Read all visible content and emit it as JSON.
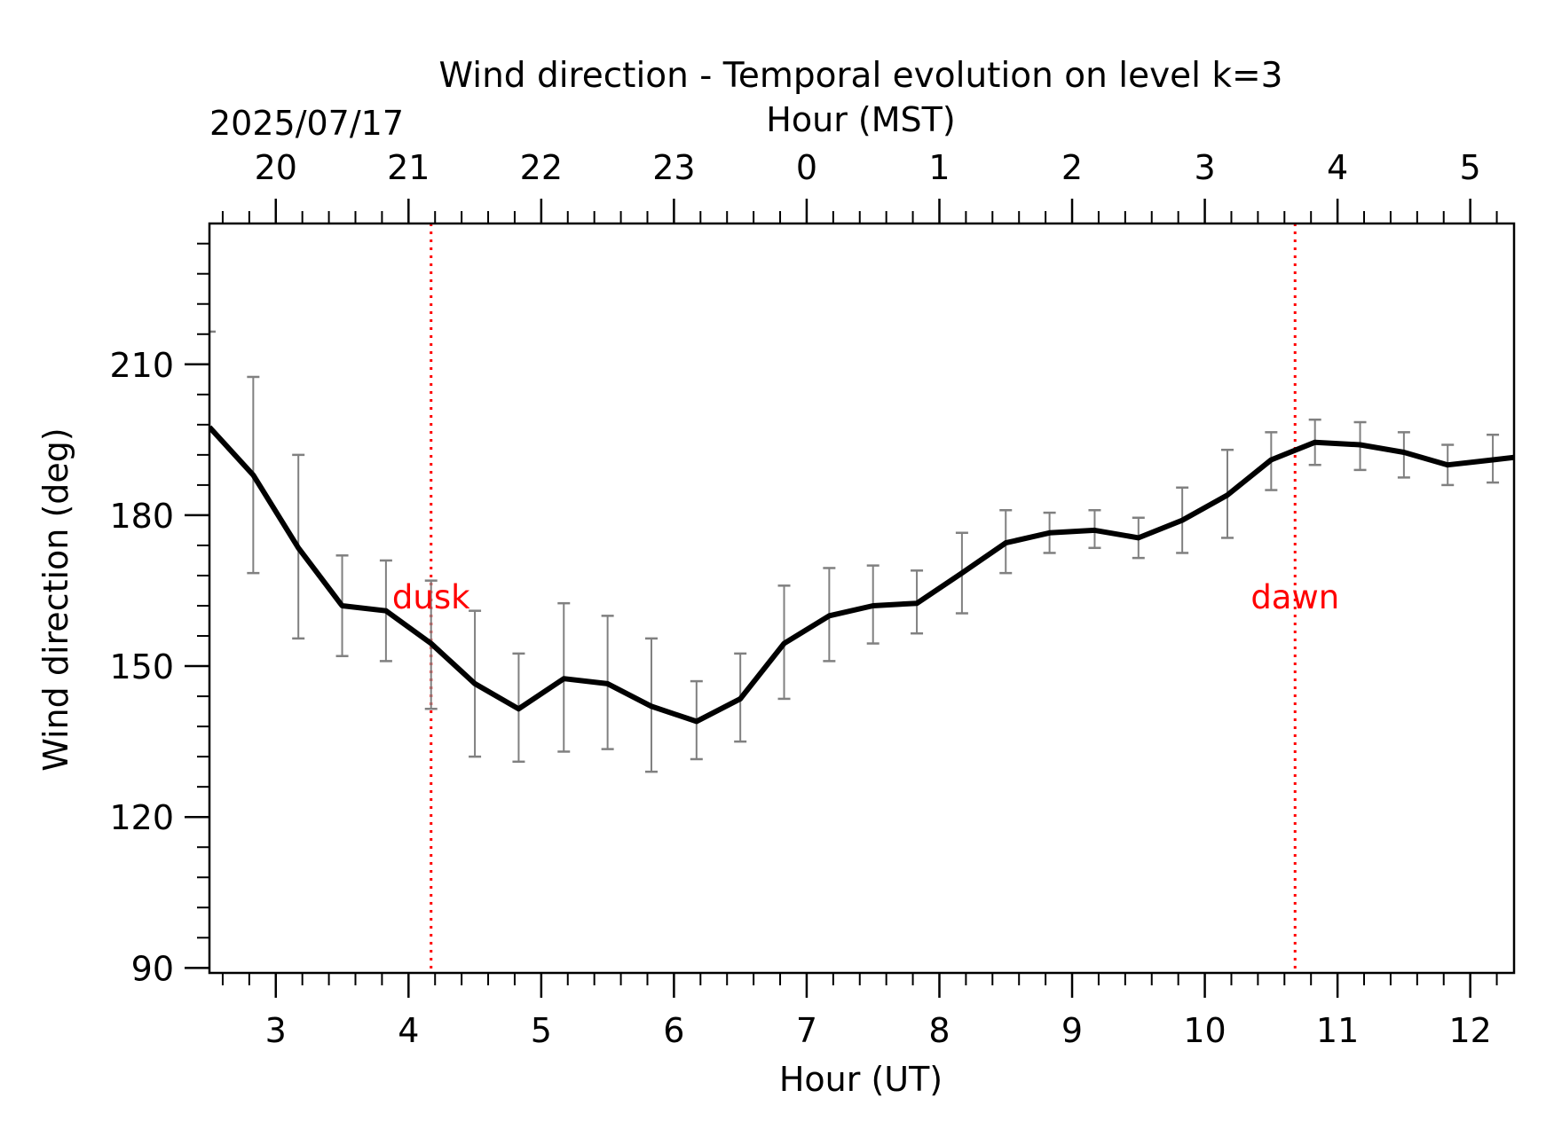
{
  "chart_data": {
    "type": "line",
    "title": "Wind direction - Temporal evolution on level k=3",
    "xlabel": "Hour (UT)",
    "ylabel": "Wind direction (deg)",
    "top_axis": {
      "label": "Hour (MST)",
      "date_label": "2025/07/17",
      "tick_values_ut": [
        3,
        4,
        5,
        6,
        7,
        8,
        9,
        10,
        11,
        12
      ],
      "tick_labels": [
        "20",
        "21",
        "22",
        "23",
        "0",
        "1",
        "2",
        "3",
        "4",
        "5"
      ]
    },
    "xlim": [
      2.5,
      12.33
    ],
    "ylim": [
      89,
      238
    ],
    "xticks": [
      3,
      4,
      5,
      6,
      7,
      8,
      9,
      10,
      11,
      12
    ],
    "yticks": [
      90,
      120,
      150,
      180,
      210
    ],
    "grid": false,
    "series": [
      {
        "x": [
          2.5,
          2.83,
          3.17,
          3.5,
          3.83,
          4.17,
          4.5,
          4.83,
          5.17,
          5.5,
          5.83,
          6.17,
          6.5,
          6.83,
          7.17,
          7.5,
          7.83,
          8.17,
          8.5,
          8.83,
          9.17,
          9.5,
          9.83,
          10.17,
          10.5,
          10.83,
          11.17,
          11.5,
          11.83,
          12.17,
          12.33
        ],
        "y": [
          197.5,
          188,
          173.5,
          162,
          161,
          154.5,
          146.5,
          141.5,
          147.5,
          146.5,
          142,
          139,
          143.5,
          154.5,
          160,
          162,
          162.5,
          168.5,
          174.5,
          176.5,
          177,
          175.5,
          179,
          184,
          191,
          194.5,
          194,
          192.5,
          190,
          191,
          191.5
        ],
        "err_low": [
          null,
          168.5,
          155.5,
          152,
          151,
          141.5,
          132,
          131,
          133,
          133.5,
          129,
          131.5,
          135,
          143.5,
          151,
          154.5,
          156.5,
          160.5,
          168.5,
          172.5,
          173.5,
          171.5,
          172.5,
          175.5,
          185,
          190,
          189,
          187.5,
          186,
          186.5,
          null
        ],
        "err_high": [
          216.5,
          207.5,
          192,
          172,
          171,
          167,
          161,
          152.5,
          162.5,
          160,
          155.5,
          147,
          152.5,
          166,
          169.5,
          170,
          169,
          176.5,
          181,
          180.5,
          181,
          179.5,
          185.5,
          193,
          196.5,
          199,
          198.5,
          196.5,
          194,
          196,
          null
        ]
      }
    ],
    "vlines": [
      {
        "x": 4.17,
        "label": "dusk",
        "color": "#ff0000",
        "style": "dotted"
      },
      {
        "x": 10.68,
        "label": "dawn",
        "color": "#ff0000",
        "style": "dotted"
      }
    ],
    "colors": {
      "line": "#000000",
      "errorbar": "#808080",
      "annotation": "#ff0000"
    }
  }
}
